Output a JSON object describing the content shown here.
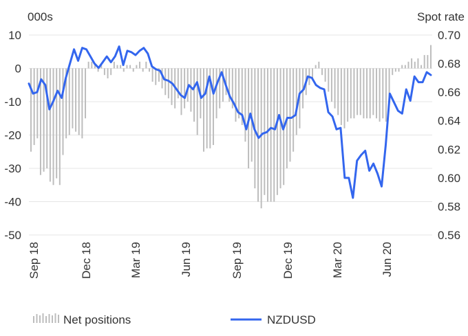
{
  "chart_data": {
    "type": "bar+line",
    "left_axis_unit": "000s",
    "right_axis_unit": "Spot rate",
    "left_ylim": [
      -50,
      10
    ],
    "right_ylim": [
      0.56,
      0.7
    ],
    "left_ticks": [
      "10",
      "0",
      "-10",
      "-20",
      "-30",
      "-40",
      "-50"
    ],
    "right_ticks": [
      "0.70",
      "0.68",
      "0.66",
      "0.64",
      "0.62",
      "0.60",
      "0.58",
      "0.56"
    ],
    "x_ticks": [
      "Sep 18",
      "Dec 18",
      "Mar 19",
      "Jun 19",
      "Sep 19",
      "Dec 19",
      "Mar 20",
      "Jun 20"
    ],
    "grid": true,
    "legend_placement": "bottom",
    "series": [
      {
        "name": "Net positions",
        "kind": "bar",
        "axis": "left",
        "color": "#bdbdbd",
        "values": [
          -25,
          -23,
          -21,
          -32,
          -31,
          -30,
          -34,
          -35,
          -33,
          -35,
          -26,
          -21,
          -20,
          -18,
          -19,
          -20,
          -21,
          -15,
          2,
          2,
          1,
          -1,
          1,
          -2,
          -3,
          -2,
          2,
          1,
          1,
          -1,
          1,
          1,
          -1,
          1,
          2,
          -1,
          2,
          -1,
          -4,
          -5,
          -4,
          -6,
          -8,
          -9,
          -11,
          -12,
          -9,
          -14,
          -12,
          -10,
          -13,
          -16,
          -20,
          -15,
          -25,
          -24,
          -24,
          -23,
          -15,
          -12,
          -10,
          -8,
          -10,
          -12,
          -16,
          -15,
          -17,
          -22,
          -30,
          -28,
          -36,
          -40,
          -42,
          -38,
          -40,
          -40,
          -40,
          -38,
          -36,
          -35,
          -30,
          -28,
          -25,
          -20,
          -18,
          -12,
          -8,
          -5,
          -3,
          1,
          2,
          -2,
          -4,
          -7,
          -10,
          -12,
          -14,
          -17,
          -18,
          -16,
          -15,
          -15,
          -14,
          -14,
          -15,
          -15,
          -15,
          -14,
          -15,
          -16,
          -15,
          -16,
          -10,
          -2,
          -1,
          -1,
          1,
          1,
          2,
          3,
          2,
          3,
          1,
          4,
          4,
          7
        ]
      },
      {
        "name": "NZDUSD",
        "kind": "line",
        "axis": "right",
        "color": "#3366ee",
        "values": [
          0.666,
          0.659,
          0.66,
          0.669,
          0.665,
          0.648,
          0.654,
          0.661,
          0.656,
          0.67,
          0.68,
          0.69,
          0.682,
          0.691,
          0.69,
          0.685,
          0.68,
          0.677,
          0.681,
          0.685,
          0.681,
          0.685,
          0.692,
          0.679,
          0.689,
          0.688,
          0.686,
          0.689,
          0.691,
          0.687,
          0.678,
          0.676,
          0.675,
          0.669,
          0.668,
          0.666,
          0.662,
          0.658,
          0.656,
          0.665,
          0.662,
          0.667,
          0.656,
          0.659,
          0.671,
          0.659,
          0.667,
          0.674,
          0.665,
          0.657,
          0.652,
          0.646,
          0.644,
          0.634,
          0.645,
          0.634,
          0.628,
          0.631,
          0.632,
          0.635,
          0.634,
          0.644,
          0.634,
          0.642,
          0.642,
          0.644,
          0.659,
          0.662,
          0.671,
          0.67,
          0.665,
          0.663,
          0.662,
          0.646,
          0.643,
          0.634,
          0.635,
          0.6,
          0.6,
          0.586,
          0.612,
          0.616,
          0.619,
          0.605,
          0.61,
          0.603,
          0.594,
          0.623,
          0.659,
          0.653,
          0.647,
          0.645,
          0.662,
          0.654,
          0.671,
          0.667,
          0.667,
          0.674,
          0.672
        ]
      }
    ]
  },
  "legend": {
    "bars_label": "Net positions",
    "line_label": "NZDUSD"
  }
}
